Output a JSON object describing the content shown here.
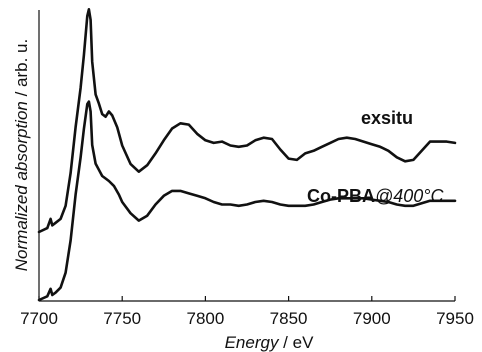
{
  "chart_data": {
    "type": "line",
    "xlabel_italic": "Energy",
    "xlabel_unit": " / eV",
    "ylabel_italic": "Normalized absorption",
    "ylabel_unit": " / arb. u.",
    "xlim": [
      7700,
      7950
    ],
    "xticks": [
      "7700",
      "7750",
      "7800",
      "7850",
      "7900",
      "7950"
    ],
    "grid": false,
    "series": [
      {
        "name": "exsitu",
        "label_bold": "exsitu",
        "label_italic": "",
        "points": [
          [
            7700,
            0.0
          ],
          [
            7705,
            0.03
          ],
          [
            7707,
            0.1
          ],
          [
            7708,
            0.05
          ],
          [
            7710,
            0.07
          ],
          [
            7713,
            0.1
          ],
          [
            7716,
            0.2
          ],
          [
            7719,
            0.45
          ],
          [
            7722,
            0.8
          ],
          [
            7725,
            1.1
          ],
          [
            7727,
            1.35
          ],
          [
            7729,
            1.65
          ],
          [
            7730,
            1.7
          ],
          [
            7731,
            1.62
          ],
          [
            7732,
            1.3
          ],
          [
            7734,
            1.05
          ],
          [
            7736,
            0.98
          ],
          [
            7738,
            0.9
          ],
          [
            7740,
            0.88
          ],
          [
            7742,
            0.92
          ],
          [
            7744,
            0.89
          ],
          [
            7747,
            0.8
          ],
          [
            7750,
            0.66
          ],
          [
            7755,
            0.52
          ],
          [
            7760,
            0.46
          ],
          [
            7765,
            0.51
          ],
          [
            7770,
            0.6
          ],
          [
            7775,
            0.7
          ],
          [
            7780,
            0.79
          ],
          [
            7785,
            0.83
          ],
          [
            7790,
            0.82
          ],
          [
            7795,
            0.75
          ],
          [
            7800,
            0.7
          ],
          [
            7805,
            0.68
          ],
          [
            7810,
            0.69
          ],
          [
            7815,
            0.66
          ],
          [
            7820,
            0.65
          ],
          [
            7825,
            0.66
          ],
          [
            7830,
            0.7
          ],
          [
            7835,
            0.72
          ],
          [
            7840,
            0.71
          ],
          [
            7845,
            0.63
          ],
          [
            7850,
            0.56
          ],
          [
            7855,
            0.55
          ],
          [
            7860,
            0.6
          ],
          [
            7865,
            0.62
          ],
          [
            7870,
            0.65
          ],
          [
            7875,
            0.68
          ],
          [
            7880,
            0.71
          ],
          [
            7885,
            0.72
          ],
          [
            7890,
            0.71
          ],
          [
            7895,
            0.69
          ],
          [
            7900,
            0.67
          ],
          [
            7905,
            0.65
          ],
          [
            7910,
            0.62
          ],
          [
            7915,
            0.57
          ],
          [
            7920,
            0.54
          ],
          [
            7925,
            0.55
          ],
          [
            7930,
            0.62
          ],
          [
            7935,
            0.69
          ],
          [
            7940,
            0.69
          ],
          [
            7945,
            0.69
          ],
          [
            7950,
            0.68
          ]
        ]
      },
      {
        "name": "Co-PBA@400°C",
        "label_bold": "Co-PBA",
        "label_italic": "@400°C",
        "points": [
          [
            7700,
            0.0
          ],
          [
            7705,
            0.03
          ],
          [
            7707,
            0.09
          ],
          [
            7708,
            0.04
          ],
          [
            7710,
            0.06
          ],
          [
            7713,
            0.1
          ],
          [
            7716,
            0.22
          ],
          [
            7719,
            0.48
          ],
          [
            7722,
            0.85
          ],
          [
            7725,
            1.15
          ],
          [
            7727,
            1.38
          ],
          [
            7729,
            1.58
          ],
          [
            7730,
            1.6
          ],
          [
            7731,
            1.52
          ],
          [
            7732,
            1.25
          ],
          [
            7734,
            1.1
          ],
          [
            7736,
            1.05
          ],
          [
            7738,
            1.0
          ],
          [
            7740,
            0.98
          ],
          [
            7742,
            0.96
          ],
          [
            7745,
            0.92
          ],
          [
            7748,
            0.85
          ],
          [
            7750,
            0.79
          ],
          [
            7755,
            0.7
          ],
          [
            7760,
            0.64
          ],
          [
            7765,
            0.68
          ],
          [
            7770,
            0.77
          ],
          [
            7775,
            0.84
          ],
          [
            7780,
            0.88
          ],
          [
            7785,
            0.88
          ],
          [
            7790,
            0.86
          ],
          [
            7795,
            0.84
          ],
          [
            7800,
            0.82
          ],
          [
            7805,
            0.79
          ],
          [
            7810,
            0.77
          ],
          [
            7815,
            0.77
          ],
          [
            7820,
            0.76
          ],
          [
            7825,
            0.77
          ],
          [
            7830,
            0.79
          ],
          [
            7835,
            0.8
          ],
          [
            7840,
            0.79
          ],
          [
            7845,
            0.77
          ],
          [
            7850,
            0.76
          ],
          [
            7855,
            0.76
          ],
          [
            7860,
            0.76
          ],
          [
            7865,
            0.77
          ],
          [
            7870,
            0.79
          ],
          [
            7875,
            0.81
          ],
          [
            7880,
            0.82
          ],
          [
            7885,
            0.82
          ],
          [
            7890,
            0.82
          ],
          [
            7895,
            0.82
          ],
          [
            7900,
            0.81
          ],
          [
            7905,
            0.8
          ],
          [
            7910,
            0.79
          ],
          [
            7915,
            0.77
          ],
          [
            7920,
            0.76
          ],
          [
            7925,
            0.76
          ],
          [
            7930,
            0.78
          ],
          [
            7935,
            0.8
          ],
          [
            7940,
            0.8
          ],
          [
            7945,
            0.8
          ],
          [
            7950,
            0.8
          ]
        ]
      }
    ]
  }
}
